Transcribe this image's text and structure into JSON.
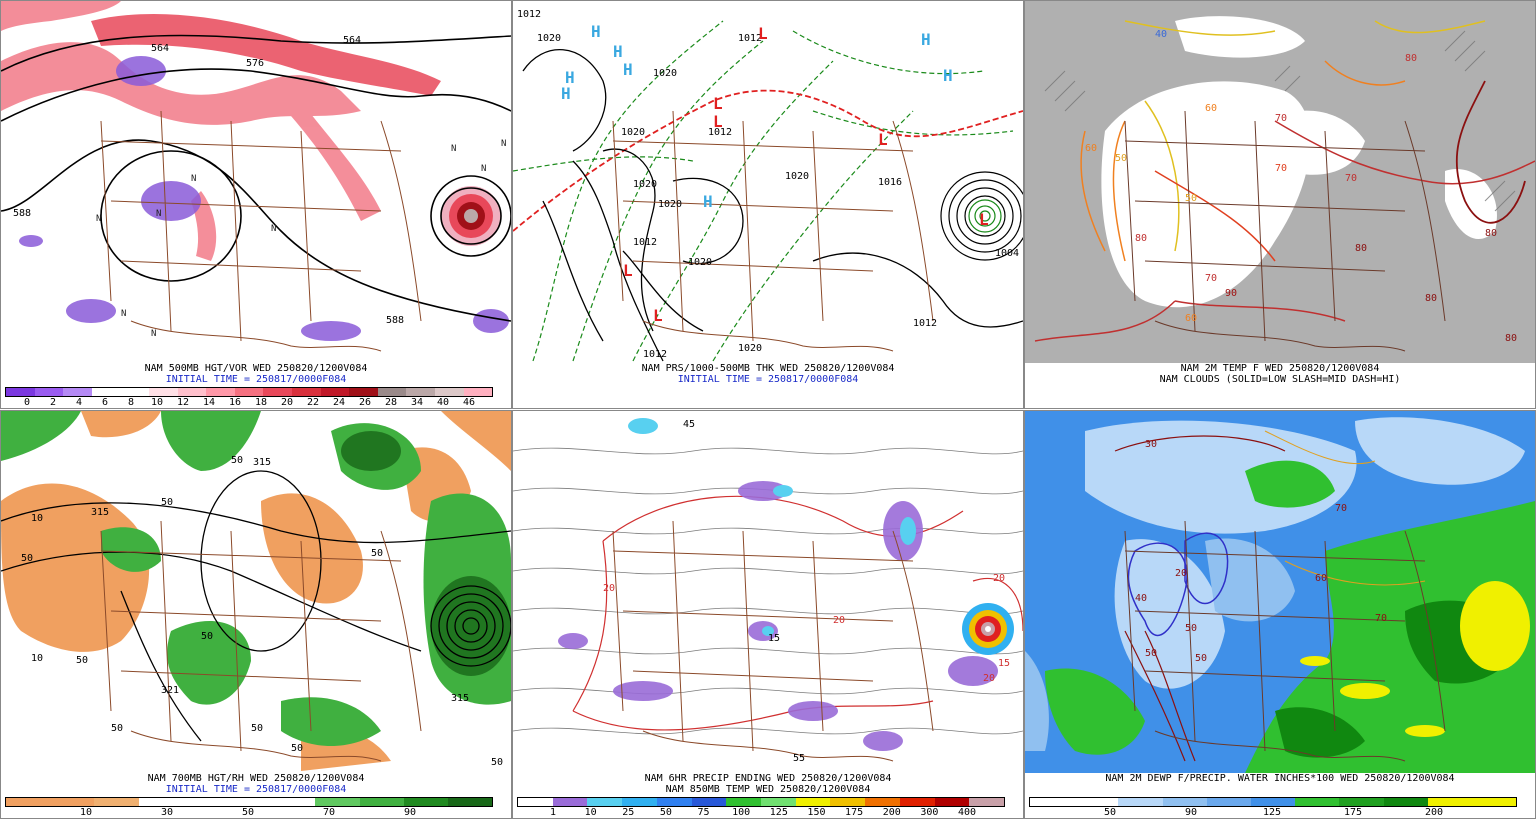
{
  "panels": [
    {
      "id": "p1",
      "title": "NAM 500MB HGT/VOR WED 250820/1200V084",
      "init": "INITIAL TIME = 250817/0000F084",
      "colorbar": {
        "colors": [
          "#7b38e0",
          "#9a5cf0",
          "#b58af5",
          "#ffffff",
          "#ffffff",
          "#ffe0e6",
          "#ffc0cc",
          "#ff98a8",
          "#f57080",
          "#e8485a",
          "#d8303c",
          "#c01828",
          "#a01018",
          "#9a8a8a",
          "#bba8a8",
          "#dcc8c8",
          "#ffb0c0"
        ],
        "labels": [
          "0",
          "2",
          "4",
          "6",
          "8",
          "10",
          "12",
          "14",
          "16",
          "18",
          "20",
          "22",
          "24",
          "26",
          "28",
          "34",
          "40",
          "46"
        ]
      },
      "labels": [
        "564",
        "576",
        "588",
        "588",
        "564",
        "N",
        "N",
        "N",
        "N",
        "N",
        "N",
        "N",
        "N",
        "N"
      ]
    },
    {
      "id": "p2",
      "title": "NAM PRS/1000-500MB THK WED 250820/1200V084",
      "init": "INITIAL TIME = 250817/0000F084",
      "labels": [
        "1012",
        "1020",
        "1020",
        "1012",
        "1020",
        "1012",
        "1020",
        "1020",
        "1016",
        "1012",
        "1004",
        "1012",
        "1012",
        "1020",
        "1020",
        "1020",
        "H",
        "H",
        "H",
        "H",
        "H",
        "H",
        "H",
        "H",
        "L",
        "L",
        "L",
        "L",
        "L",
        "L",
        "L"
      ]
    },
    {
      "id": "p3",
      "title": "NAM 2M TEMP F WED 250820/1200V084",
      "subtitle": "NAM CLOUDS (SOLID=LOW SLASH=MID DASH=HI)",
      "labels": [
        "40",
        "50",
        "50",
        "60",
        "70",
        "70",
        "70",
        "80",
        "80",
        "80",
        "80",
        "80",
        "80",
        "70",
        "60",
        "60",
        "90"
      ]
    },
    {
      "id": "p4",
      "title": "NAM 700MB HGT/RH WED 250820/1200V084",
      "init": "INITIAL TIME = 250817/0000F084",
      "colorbar": {
        "colors": [
          "#f0a060",
          "#f0a060",
          "#f0b070",
          "#ffffff",
          "#ffffff",
          "#ffffff",
          "#ffffff",
          "#60c860",
          "#40b040",
          "#208a20",
          "#186818"
        ],
        "labels": [
          "10",
          "30",
          "50",
          "70",
          "90"
        ]
      },
      "labels": [
        "315",
        "315",
        "315",
        "50",
        "50",
        "50",
        "50",
        "50",
        "50",
        "10",
        "10",
        "50",
        "50",
        "50",
        "50",
        "321"
      ]
    },
    {
      "id": "p5",
      "title": "NAM 6HR PRECIP ENDING WED 250820/1200V084",
      "subtitle": "NAM 850MB TEMP WED 250820/1200V084",
      "colorbar": {
        "colors": [
          "#ffffff",
          "#9a6cd8",
          "#58d0f0",
          "#30b0f0",
          "#3080f0",
          "#2858d8",
          "#30c030",
          "#70e070",
          "#f0f000",
          "#f0c000",
          "#f07000",
          "#e02000",
          "#b00000",
          "#c8a0a8"
        ],
        "labels": [
          "1",
          "10",
          "25",
          "50",
          "75",
          "100",
          "125",
          "150",
          "175",
          "200",
          "300",
          "400"
        ]
      },
      "labels": [
        "45",
        "55",
        "15",
        "20",
        "20",
        "20",
        "20",
        "15"
      ]
    },
    {
      "id": "p6",
      "title": "NAM 2M DEWP F/PRECIP. WATER INCHES*100 WED 250820/1200V084",
      "colorbar": {
        "colors": [
          "#ffffff",
          "#ffffff",
          "#b8d8f8",
          "#90c0f0",
          "#6aa8ec",
          "#4090e8",
          "#30c030",
          "#20a020",
          "#108810",
          "#f0f000",
          "#f0f000"
        ],
        "labels": [
          "50",
          "90",
          "125",
          "175",
          "200"
        ]
      },
      "labels": [
        "40",
        "50",
        "50",
        "50",
        "60",
        "70",
        "70",
        "20",
        "30"
      ]
    }
  ]
}
